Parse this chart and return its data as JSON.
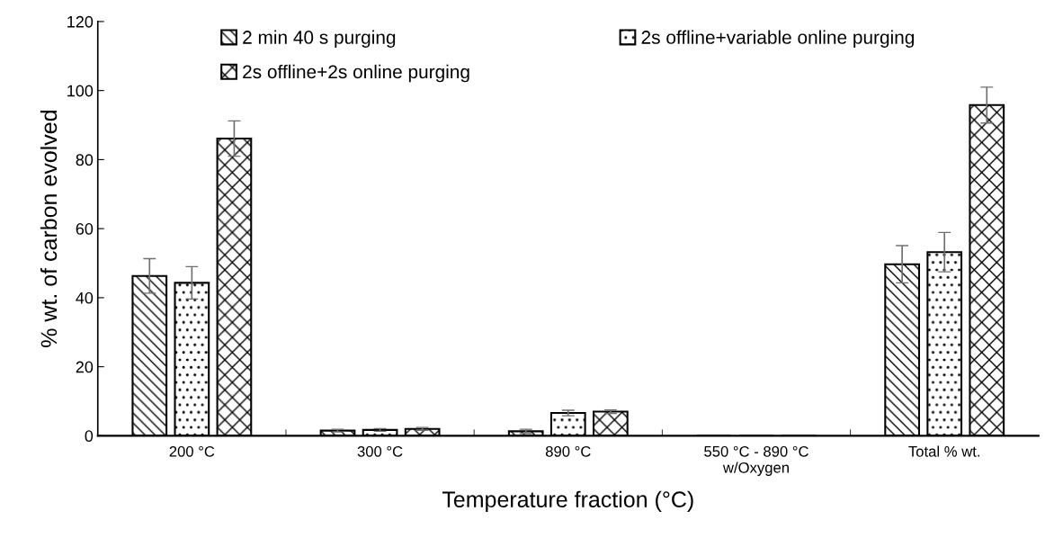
{
  "chart_data": {
    "type": "bar",
    "xlabel": "Temperature fraction (°C)",
    "ylabel": "% wt. of carbon evolved",
    "categories": [
      "200 °C",
      "300 °C",
      "890 °C",
      "550 °C - 890 °C\nw/Oxygen",
      "Total % wt."
    ],
    "series": [
      {
        "name": "2 min 40 s purging",
        "color": "#000000",
        "values": [
          46.3,
          1.5,
          1.3,
          0,
          49.7
        ],
        "errors": [
          5,
          0.4,
          0.6,
          null,
          5.4
        ]
      },
      {
        "name": "2s offline+variable online purging",
        "color": "#000000",
        "values": [
          44.3,
          1.7,
          6.6,
          0,
          53.2
        ],
        "errors": [
          4.7,
          0.4,
          0.8,
          null,
          5.7
        ]
      },
      {
        "name": "2s offline+2s online purging",
        "color": "#000000",
        "values": [
          86.1,
          2.0,
          7.0,
          0,
          95.8
        ],
        "errors": [
          5.1,
          0.4,
          0.5,
          null,
          5.2
        ]
      }
    ],
    "ylim": [
      0,
      120
    ],
    "yticks": [
      0,
      20,
      40,
      60,
      80,
      100,
      120
    ],
    "grid": false,
    "legend": "top"
  }
}
